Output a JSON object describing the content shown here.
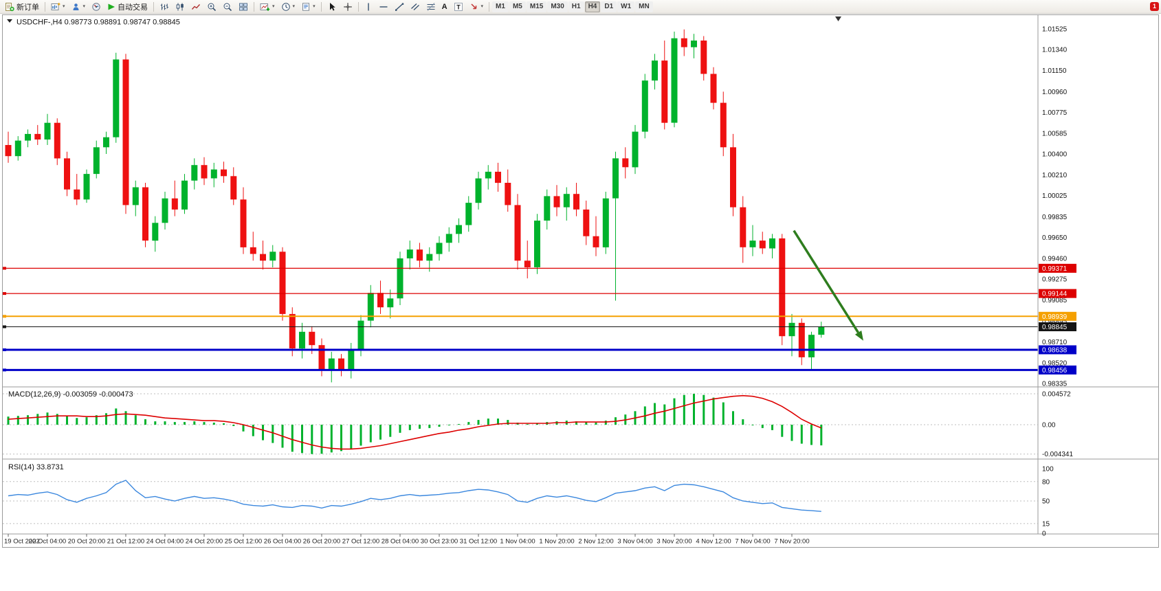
{
  "toolbar": {
    "new_order_label": "新订单",
    "auto_trading_label": "自动交易",
    "text_tool_label": "A",
    "label_tool_label": "T",
    "timeframes": [
      "M1",
      "M5",
      "M15",
      "M30",
      "H1",
      "H4",
      "D1",
      "W1",
      "MN"
    ],
    "active_timeframe": "H4",
    "notification_badge": "1"
  },
  "chart": {
    "title_text": "USDCHF-,H4  0.98773 0.98891 0.98747 0.98845",
    "macd_label": "MACD(12,26,9) -0.003059 -0.000473",
    "rsi_label": "RSI(14) 33.8731"
  },
  "chart_data": [
    {
      "type": "candlestick",
      "symbol": "USDCHF-",
      "timeframe": "H4",
      "ohlc_current": {
        "open": 0.98773,
        "high": 0.98891,
        "low": 0.98747,
        "close": 0.98845
      },
      "up_color": "#00B22C",
      "down_color": "#EE1111",
      "y_min": 0.98335,
      "y_max": 1.01525,
      "y_ticks": [
        "1.01525",
        "1.01340",
        "1.01150",
        "1.00960",
        "1.00775",
        "1.00585",
        "1.00400",
        "1.00210",
        "1.00025",
        "0.99835",
        "0.99650",
        "0.99460",
        "0.99275",
        "0.99085",
        "0.98895",
        "0.98710",
        "0.98520",
        "0.98335"
      ],
      "label_stride": 4,
      "time_labels": [
        "19 Oct 2022",
        "20 Oct 04:00",
        "20 Oct 20:00",
        "21 Oct 12:00",
        "24 Oct 04:00",
        "24 Oct 20:00",
        "25 Oct 12:00",
        "26 Oct 04:00",
        "26 Oct 20:00",
        "27 Oct 12:00",
        "28 Oct 04:00",
        "30 Oct 23:00",
        "31 Oct 12:00",
        "1 Nov 04:00",
        "1 Nov 20:00",
        "2 Nov 12:00",
        "3 Nov 04:00",
        "3 Nov 20:00",
        "4 Nov 12:00",
        "7 Nov 04:00",
        "7 Nov 20:00"
      ],
      "candles": [
        [
          1.0048,
          1.006,
          1.0032,
          1.0038
        ],
        [
          1.0038,
          1.0056,
          1.0034,
          1.0052
        ],
        [
          1.0052,
          1.0062,
          1.0046,
          1.0058
        ],
        [
          1.0058,
          1.0066,
          1.0048,
          1.0053
        ],
        [
          1.0053,
          1.0076,
          1.0048,
          1.0068
        ],
        [
          1.0068,
          1.0072,
          1.003,
          1.0036
        ],
        [
          1.0036,
          1.0042,
          1.0002,
          1.0008
        ],
        [
          1.0008,
          1.0022,
          0.9994,
          0.9999
        ],
        [
          0.9999,
          1.0026,
          0.9996,
          1.0022
        ],
        [
          1.0022,
          1.0052,
          1.0018,
          1.0046
        ],
        [
          1.0046,
          1.006,
          1.004,
          1.0055
        ],
        [
          1.0055,
          1.0131,
          1.005,
          1.0125
        ],
        [
          1.0125,
          1.013,
          0.9986,
          0.9994
        ],
        [
          0.9994,
          1.0016,
          0.9984,
          1.001
        ],
        [
          1.001,
          1.0014,
          0.9956,
          0.9962
        ],
        [
          0.9962,
          0.9984,
          0.9952,
          0.9978
        ],
        [
          0.9978,
          1.0006,
          0.9972,
          1.0
        ],
        [
          1.0,
          1.0016,
          0.9984,
          0.999
        ],
        [
          0.999,
          1.0022,
          0.9986,
          1.0016
        ],
        [
          1.0016,
          1.0036,
          1.0008,
          1.003
        ],
        [
          1.003,
          1.0037,
          1.0012,
          1.0018
        ],
        [
          1.0018,
          1.0032,
          1.001,
          1.0026
        ],
        [
          1.0026,
          1.0033,
          1.0014,
          1.002
        ],
        [
          1.002,
          1.0028,
          0.9994,
          0.9999
        ],
        [
          0.9999,
          1.001,
          0.995,
          0.9956
        ],
        [
          0.9956,
          0.997,
          0.9944,
          0.995
        ],
        [
          0.995,
          0.9962,
          0.9936,
          0.9944
        ],
        [
          0.9944,
          0.9958,
          0.9938,
          0.9952
        ],
        [
          0.9952,
          0.9956,
          0.989,
          0.9896
        ],
        [
          0.9896,
          0.9902,
          0.9858,
          0.9865
        ],
        [
          0.9865,
          0.9888,
          0.9856,
          0.988
        ],
        [
          0.988,
          0.9885,
          0.986,
          0.9868
        ],
        [
          0.9868,
          0.9874,
          0.984,
          0.9846
        ],
        [
          0.9846,
          0.9862,
          0.98345,
          0.9856
        ],
        [
          0.9856,
          0.986,
          0.984,
          0.9845
        ],
        [
          0.9845,
          0.987,
          0.9838,
          0.9864
        ],
        [
          0.9864,
          0.9895,
          0.9858,
          0.989
        ],
        [
          0.989,
          0.9922,
          0.9884,
          0.9915
        ],
        [
          0.9915,
          0.9926,
          0.9896,
          0.9902
        ],
        [
          0.9902,
          0.9918,
          0.9892,
          0.991
        ],
        [
          0.991,
          0.9952,
          0.9904,
          0.9946
        ],
        [
          0.9946,
          0.9962,
          0.9936,
          0.9954
        ],
        [
          0.9954,
          0.996,
          0.9938,
          0.9944
        ],
        [
          0.9944,
          0.9956,
          0.9934,
          0.995
        ],
        [
          0.995,
          0.9966,
          0.9944,
          0.996
        ],
        [
          0.996,
          0.9974,
          0.9952,
          0.9968
        ],
        [
          0.9968,
          0.9982,
          0.996,
          0.9976
        ],
        [
          0.9976,
          1.0002,
          0.997,
          0.9996
        ],
        [
          0.9996,
          1.0024,
          0.999,
          1.0018
        ],
        [
          1.0018,
          1.003,
          1.0008,
          1.0024
        ],
        [
          1.0024,
          1.0032,
          1.0006,
          1.0014
        ],
        [
          1.0014,
          1.0026,
          0.9988,
          0.9994
        ],
        [
          0.9994,
          1.0004,
          0.9936,
          0.9944
        ],
        [
          0.9944,
          0.9962,
          0.9928,
          0.9938
        ],
        [
          0.9938,
          0.9986,
          0.9932,
          0.998
        ],
        [
          0.998,
          1.0008,
          0.9972,
          1.0002
        ],
        [
          1.0002,
          1.0012,
          0.9984,
          0.9992
        ],
        [
          0.9992,
          1.001,
          0.998,
          1.0004
        ],
        [
          1.0004,
          1.0014,
          0.9984,
          0.999
        ],
        [
          0.999,
          0.9998,
          0.9958,
          0.9966
        ],
        [
          0.9966,
          0.9984,
          0.9948,
          0.9956
        ],
        [
          0.9956,
          1.0006,
          0.995,
          1.0
        ],
        [
          1.0,
          1.0042,
          0.9908,
          1.0036
        ],
        [
          1.0036,
          1.0046,
          1.0018,
          1.0028
        ],
        [
          1.0028,
          1.0066,
          1.0022,
          1.006
        ],
        [
          1.006,
          1.0112,
          1.0054,
          1.0106
        ],
        [
          1.0106,
          1.013,
          1.0098,
          1.0124
        ],
        [
          1.0124,
          1.0142,
          1.0062,
          1.0068
        ],
        [
          1.0068,
          1.015,
          1.0064,
          1.0144
        ],
        [
          1.0144,
          1.0152,
          1.0128,
          1.0136
        ],
        [
          1.0136,
          1.0148,
          1.0126,
          1.0142
        ],
        [
          1.0142,
          1.0146,
          1.0106,
          1.0112
        ],
        [
          1.0112,
          1.0118,
          1.008,
          1.0086
        ],
        [
          1.0086,
          1.0096,
          1.0038,
          1.0046
        ],
        [
          1.0046,
          1.0058,
          0.9984,
          0.9992
        ],
        [
          0.9992,
          1.0002,
          0.9942,
          0.9956
        ],
        [
          0.9956,
          0.9976,
          0.9948,
          0.9962
        ],
        [
          0.9962,
          0.997,
          0.995,
          0.9955
        ],
        [
          0.9955,
          0.9968,
          0.9946,
          0.9964
        ],
        [
          0.9964,
          0.9968,
          0.9868,
          0.9876
        ],
        [
          0.9876,
          0.9896,
          0.9858,
          0.9888
        ],
        [
          0.9888,
          0.9892,
          0.985,
          0.9857
        ],
        [
          0.9857,
          0.988,
          0.9846,
          0.98773
        ],
        [
          0.98773,
          0.98891,
          0.98747,
          0.98845
        ]
      ],
      "h_lines": [
        {
          "value": 0.99371,
          "label": "0.99371",
          "color": "#DD0000",
          "width": 1.3
        },
        {
          "value": 0.99144,
          "label": "0.99144",
          "color": "#DD0000",
          "width": 1.3
        },
        {
          "value": 0.98939,
          "label": "0.98939",
          "color": "#F5A000",
          "width": 2
        },
        {
          "value": 0.98845,
          "label": "0.98845",
          "color": "#151515",
          "width": 1,
          "current": true
        },
        {
          "value": 0.98638,
          "label": "0.98638",
          "color": "#0000C8",
          "width": 3
        },
        {
          "value": 0.98456,
          "label": "0.98456",
          "color": "#0000C8",
          "width": 3
        }
      ],
      "annotations": [
        {
          "type": "arrow",
          "from_i": 80.2,
          "from_price": 0.9971,
          "to_i": 87.3,
          "to_price": 0.9872,
          "color": "#2E7D1E"
        }
      ]
    },
    {
      "type": "bar",
      "name": "MACD",
      "params": "12,26,9",
      "main_value": -0.003059,
      "signal_value": -0.000473,
      "hist_color": "#00B22C",
      "signal_color": "#DD0000",
      "range": [
        -0.004341,
        0.004572
      ],
      "axis_ticks": [
        "0.004572",
        "0.00",
        "-0.004341"
      ],
      "histogram": [
        0.0012,
        0.0013,
        0.0014,
        0.0016,
        0.0018,
        0.0016,
        0.0013,
        0.001,
        0.0011,
        0.0014,
        0.0017,
        0.0024,
        0.002,
        0.0014,
        0.0008,
        0.0005,
        0.0005,
        0.0004,
        0.0004,
        0.0005,
        0.0004,
        0.0003,
        0.0002,
        -0.0002,
        -0.001,
        -0.0017,
        -0.0023,
        -0.0027,
        -0.0034,
        -0.004,
        -0.0042,
        -0.004341,
        -0.0043,
        -0.0041,
        -0.0039,
        -0.0036,
        -0.0031,
        -0.0026,
        -0.0022,
        -0.0018,
        -0.0012,
        -0.0008,
        -0.0006,
        -0.0005,
        -0.0003,
        -0.0001,
        0.0001,
        0.0004,
        0.0007,
        0.0009,
        0.0009,
        0.0007,
        0.0003,
        0.0001,
        0.0002,
        0.0004,
        0.0005,
        0.0006,
        0.0005,
        0.0004,
        0.0003,
        0.0006,
        0.0011,
        0.0015,
        0.002,
        0.0027,
        0.0032,
        0.003,
        0.0039,
        0.0044,
        0.004572,
        0.0044,
        0.004,
        0.0033,
        0.002,
        0.0008,
        0.0,
        -0.0005,
        -0.0008,
        -0.0018,
        -0.0024,
        -0.0028,
        -0.003,
        -0.003059
      ],
      "signal": [
        0.0008,
        0.0009,
        0.001,
        0.0011,
        0.0012,
        0.0013,
        0.0013,
        0.0013,
        0.0012,
        0.0012,
        0.0013,
        0.0015,
        0.0016,
        0.0015,
        0.0014,
        0.0012,
        0.001,
        0.0009,
        0.0008,
        0.0007,
        0.0006,
        0.0006,
        0.0005,
        0.0003,
        0.0,
        -0.0004,
        -0.0008,
        -0.0012,
        -0.0017,
        -0.0022,
        -0.0026,
        -0.003,
        -0.0033,
        -0.0035,
        -0.0036,
        -0.0036,
        -0.0035,
        -0.0033,
        -0.0031,
        -0.0028,
        -0.0025,
        -0.0022,
        -0.0019,
        -0.0016,
        -0.0013,
        -0.0011,
        -0.0008,
        -0.0006,
        -0.0003,
        -0.0001,
        0.0001,
        0.0002,
        0.0002,
        0.0002,
        0.0002,
        0.0002,
        0.0003,
        0.0003,
        0.0004,
        0.0004,
        0.0004,
        0.0004,
        0.0005,
        0.0007,
        0.001,
        0.0013,
        0.0017,
        0.002,
        0.0024,
        0.0028,
        0.0032,
        0.0035,
        0.0038,
        0.004,
        0.0042,
        0.0043,
        0.0042,
        0.0039,
        0.0034,
        0.0027,
        0.0018,
        0.0008,
        0.0001,
        -0.000473
      ]
    },
    {
      "type": "line",
      "name": "RSI",
      "params": "14",
      "value": 33.8731,
      "color": "#3A87DE",
      "range": [
        0,
        100
      ],
      "levels": [
        80,
        50,
        15
      ],
      "axis_ticks": [
        "100",
        "80",
        "50",
        "15",
        "0"
      ],
      "values": [
        58,
        60,
        59,
        62,
        64,
        60,
        52,
        48,
        54,
        58,
        63,
        76,
        82,
        66,
        55,
        57,
        53,
        50,
        54,
        57,
        54,
        55,
        53,
        50,
        45,
        43,
        42,
        44,
        41,
        40,
        43,
        42,
        39,
        43,
        42,
        45,
        49,
        54,
        52,
        54,
        58,
        60,
        58,
        59,
        60,
        62,
        63,
        66,
        68,
        67,
        64,
        60,
        50,
        48,
        54,
        58,
        56,
        58,
        55,
        51,
        49,
        55,
        62,
        64,
        66,
        70,
        72,
        66,
        74,
        76,
        75,
        72,
        68,
        64,
        55,
        50,
        48,
        46,
        47,
        40,
        38,
        36,
        35,
        33.8731
      ]
    }
  ]
}
